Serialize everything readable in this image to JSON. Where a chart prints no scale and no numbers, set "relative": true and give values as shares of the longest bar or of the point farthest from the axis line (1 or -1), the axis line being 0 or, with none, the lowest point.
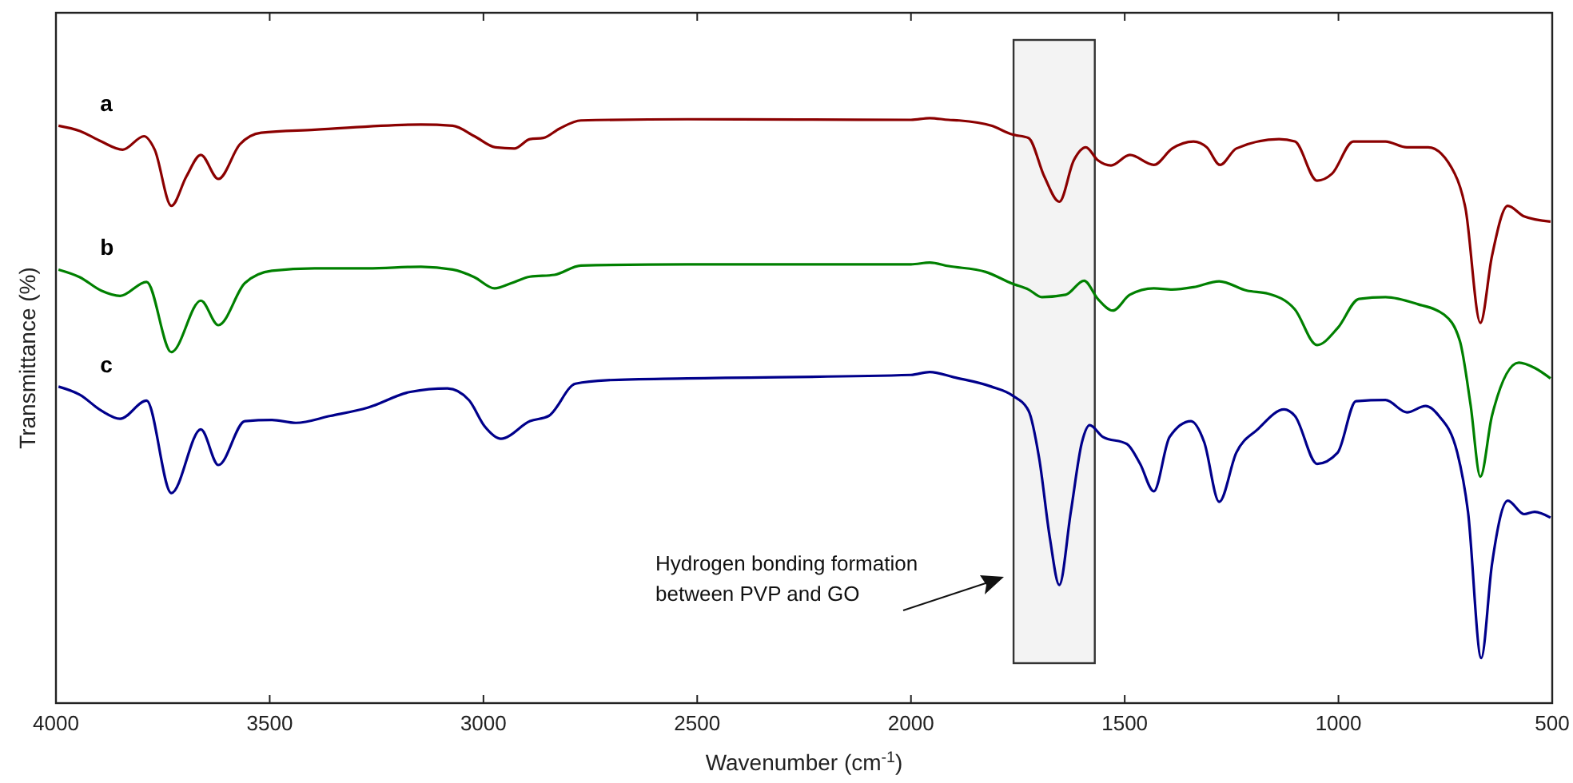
{
  "chart_data": {
    "type": "line",
    "relative": true,
    "xlabel": "Wavenumber (cm$^{-1}$)",
    "ylabel": "Transmittance (%)",
    "xlim": [
      4000,
      500
    ],
    "xticks": [
      4000,
      3500,
      3000,
      2500,
      2000,
      1500,
      1000,
      500
    ],
    "bands": [
      {
        "axis": "x",
        "from": 1760,
        "to": 1570,
        "color": "#333333"
      }
    ],
    "annotations": [
      "Hydrogen bonding formation between PVP and GO"
    ],
    "x": [
      3994,
      3944,
      3894,
      3844,
      3794,
      3769,
      3730,
      3695,
      3661,
      3620,
      3570,
      3520,
      3395,
      3146,
      3072,
      3021,
      2972,
      2928,
      2891,
      2860,
      2822,
      2772,
      2523,
      2000,
      1956,
      1912,
      1887,
      1812,
      1763,
      1725,
      1688,
      1653,
      1619,
      1591,
      1563,
      1532,
      1488,
      1432,
      1389,
      1339,
      1308,
      1277,
      1239,
      1139,
      1102,
      1050,
      1015,
      965,
      890,
      840,
      790,
      728,
      703,
      668,
      641,
      604,
      566,
      504
    ],
    "series": [
      {
        "name": "a",
        "color": "#8b0000",
        "values": [
          0.987,
          0.978,
          0.96,
          0.946,
          0.969,
          0.946,
          0.85,
          0.9,
          0.937,
          0.896,
          0.955,
          0.975,
          0.98,
          0.989,
          0.987,
          0.969,
          0.95,
          0.948,
          0.964,
          0.966,
          0.982,
          0.996,
          0.998,
          0.997,
          1.0,
          0.997,
          0.996,
          0.987,
          0.972,
          0.966,
          0.9,
          0.857,
          0.928,
          0.95,
          0.928,
          0.919,
          0.937,
          0.92,
          0.948,
          0.96,
          0.95,
          0.92,
          0.948,
          0.964,
          0.96,
          0.893,
          0.905,
          0.96,
          0.96,
          0.95,
          0.95,
          0.905,
          0.846,
          0.65,
          0.764,
          0.85,
          0.832,
          0.823
        ]
      },
      {
        "name": "b",
        "color": "#008000",
        "x": [
          3994,
          3944,
          3894,
          3850,
          3788,
          3730,
          3661,
          3620,
          3558,
          3495,
          3395,
          3271,
          3146,
          3072,
          3021,
          2974,
          2934,
          2891,
          2834,
          2772,
          2523,
          2000,
          1956,
          1912,
          1825,
          1763,
          1725,
          1694,
          1638,
          1595,
          1563,
          1528,
          1488,
          1432,
          1389,
          1339,
          1279,
          1214,
          1165,
          1102,
          1050,
          1002,
          952,
          890,
          815,
          753,
          716,
          691,
          668,
          641,
          578,
          541,
          504
        ],
        "values": [
          0.741,
          0.728,
          0.705,
          0.696,
          0.72,
          0.6,
          0.688,
          0.646,
          0.718,
          0.739,
          0.743,
          0.743,
          0.746,
          0.741,
          0.728,
          0.709,
          0.718,
          0.729,
          0.732,
          0.748,
          0.75,
          0.75,
          0.753,
          0.747,
          0.737,
          0.717,
          0.707,
          0.694,
          0.698,
          0.722,
          0.691,
          0.671,
          0.698,
          0.709,
          0.707,
          0.711,
          0.721,
          0.705,
          0.7,
          0.673,
          0.612,
          0.641,
          0.691,
          0.694,
          0.682,
          0.664,
          0.619,
          0.51,
          0.387,
          0.491,
          0.582,
          0.573,
          0.555
        ]
      },
      {
        "name": "c",
        "color": "#00008b",
        "x": [
          3994,
          3944,
          3894,
          3850,
          3788,
          3730,
          3661,
          3620,
          3558,
          3495,
          3439,
          3358,
          3271,
          3171,
          3084,
          3034,
          2997,
          2959,
          2891,
          2847,
          2785,
          2710,
          2523,
          2000,
          1956,
          1900,
          1812,
          1763,
          1725,
          1700,
          1675,
          1653,
          1626,
          1600,
          1582,
          1551,
          1495,
          1464,
          1432,
          1395,
          1345,
          1314,
          1279,
          1239,
          1189,
          1127,
          1102,
          1050,
          1002,
          959,
          890,
          840,
          796,
          765,
          722,
          697,
          666,
          641,
          604,
          566,
          541,
          504
        ],
        "values": [
          0.541,
          0.527,
          0.5,
          0.486,
          0.517,
          0.359,
          0.468,
          0.407,
          0.482,
          0.484,
          0.479,
          0.491,
          0.505,
          0.532,
          0.538,
          0.518,
          0.473,
          0.452,
          0.482,
          0.491,
          0.546,
          0.552,
          0.555,
          0.561,
          0.566,
          0.557,
          0.541,
          0.526,
          0.5,
          0.418,
          0.282,
          0.202,
          0.327,
          0.446,
          0.475,
          0.455,
          0.443,
          0.409,
          0.362,
          0.455,
          0.482,
          0.446,
          0.344,
          0.428,
          0.468,
          0.502,
          0.491,
          0.409,
          0.428,
          0.516,
          0.518,
          0.497,
          0.508,
          0.491,
          0.428,
          0.327,
          0.077,
          0.237,
          0.346,
          0.323,
          0.327,
          0.317
        ]
      }
    ]
  }
}
